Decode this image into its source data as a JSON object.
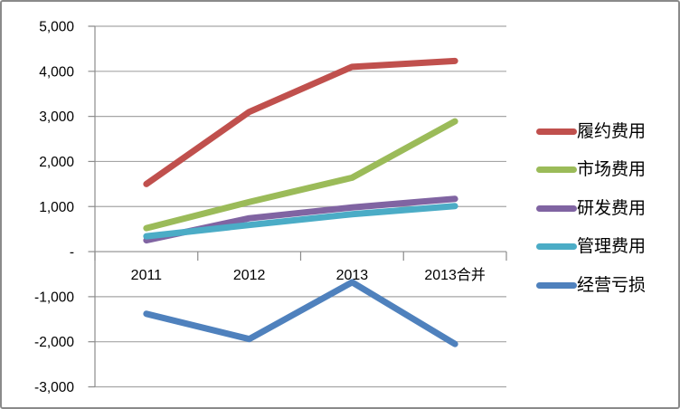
{
  "frame": {
    "background": "#ffffff",
    "border_color": "#8a8a8a"
  },
  "colors": {
    "gridline": "#a6a6a6",
    "axis": "#8c8c8c",
    "text": "#000000"
  },
  "chart_data": {
    "type": "line",
    "title": "",
    "xlabel": "",
    "ylabel": "",
    "grid": true,
    "legend_position": "right",
    "categories": [
      "2011",
      "2012",
      "2013",
      "2013合并"
    ],
    "series": [
      {
        "name": "履约费用",
        "color": "#C0504D",
        "values": [
          1500,
          3100,
          4100,
          4230
        ]
      },
      {
        "name": "市场费用",
        "color": "#9BBB59",
        "values": [
          520,
          1100,
          1640,
          2890
        ]
      },
      {
        "name": "研发费用",
        "color": "#8064A2",
        "values": [
          250,
          740,
          980,
          1170
        ]
      },
      {
        "name": "管理费用",
        "color": "#4BACC6",
        "values": [
          340,
          590,
          830,
          1010
        ]
      },
      {
        "name": "经营亏损",
        "color": "#4F81BD",
        "values": [
          -1380,
          -1940,
          -680,
          -2050
        ]
      }
    ],
    "ylim": [
      -3000,
      5000
    ],
    "y_tick_step": 1000,
    "y_tick_labels": [
      "5,000",
      "4,000",
      "3,000",
      "2,000",
      "1,000",
      "-",
      "-1,000",
      "-2,000",
      "-3,000"
    ]
  }
}
